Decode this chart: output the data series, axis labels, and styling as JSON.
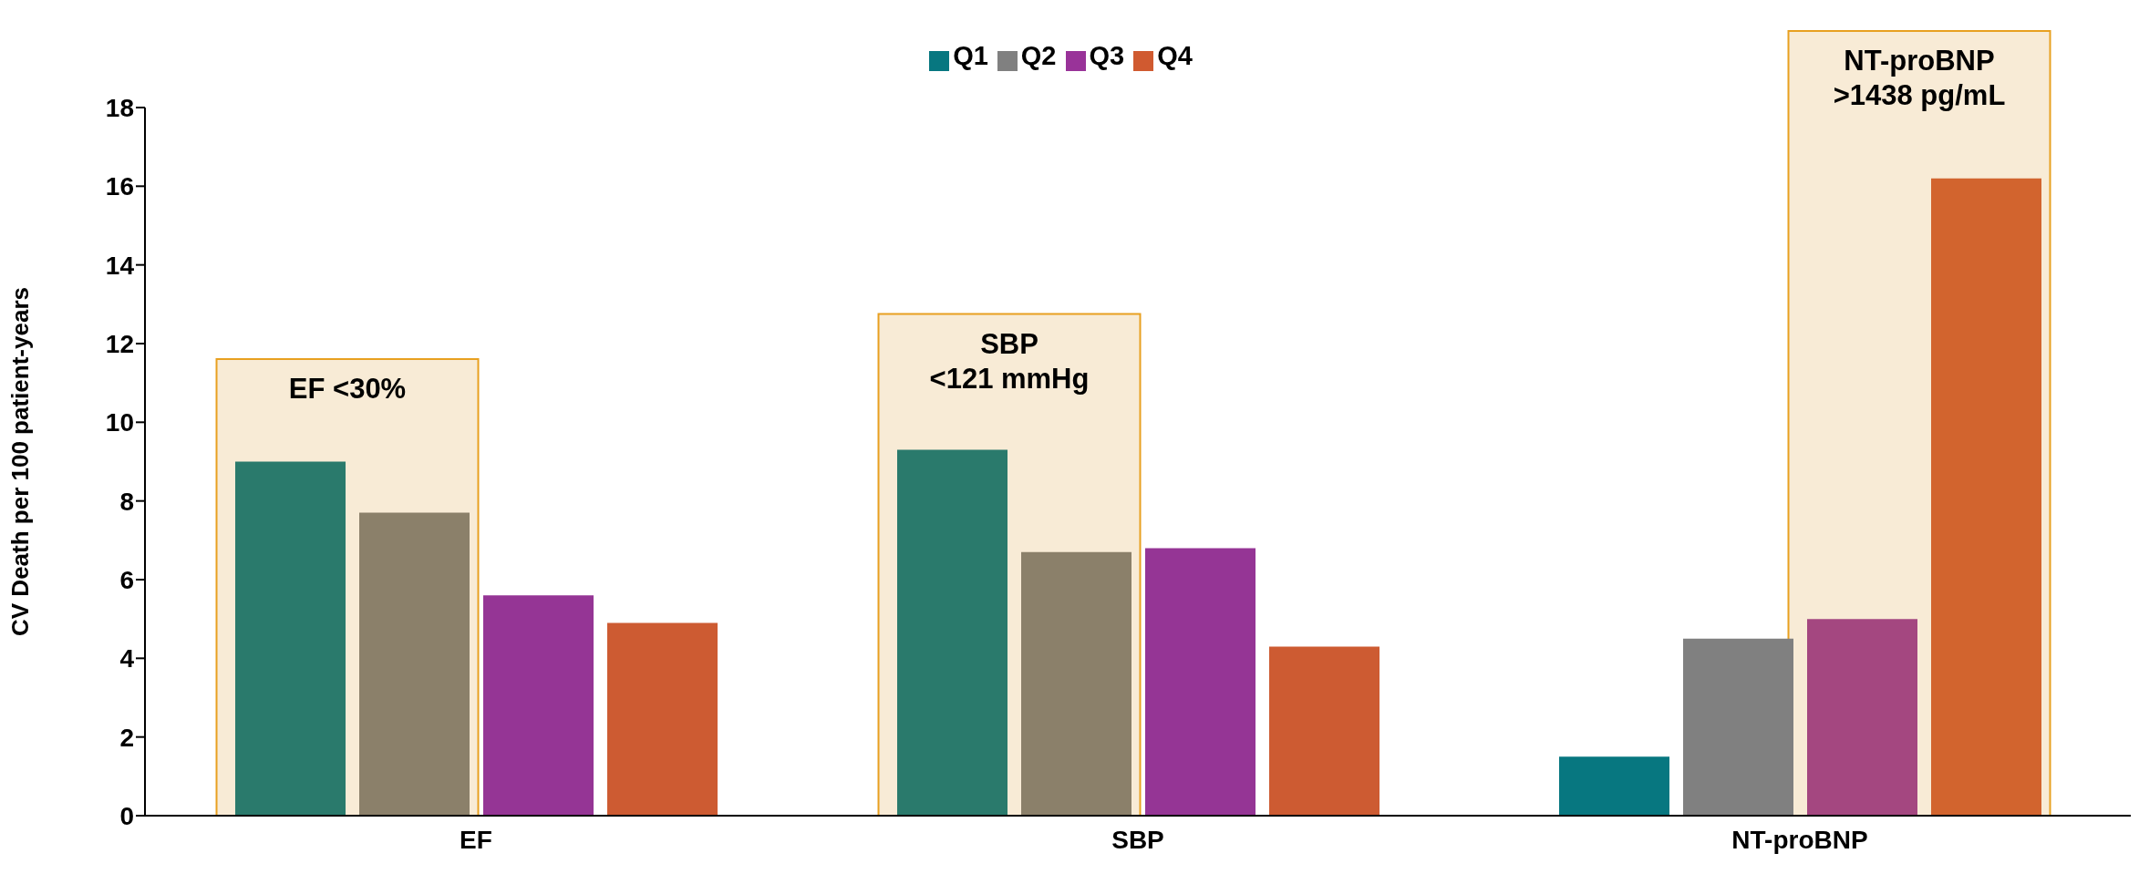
{
  "chart_data": {
    "type": "bar",
    "ylabel": "CV Death per 100 patient-years",
    "categories": [
      "EF",
      "SBP",
      "NT-proBNP"
    ],
    "series": [
      {
        "name": "Q1",
        "color": "#077780",
        "colors": [
          "#2a7a6c",
          "#2a7a6c",
          "#077780"
        ],
        "values": [
          9.0,
          9.3,
          1.5
        ]
      },
      {
        "name": "Q2",
        "color": "#808080",
        "colors": [
          "#8b806a",
          "#8b806a",
          "#808080"
        ],
        "values": [
          7.7,
          6.7,
          4.5
        ]
      },
      {
        "name": "Q3",
        "color": "#993399",
        "colors": [
          "#953595",
          "#953595",
          "#a44780"
        ],
        "values": [
          5.6,
          6.8,
          5.0
        ]
      },
      {
        "name": "Q4",
        "color": "#d05a30",
        "colors": [
          "#cd5b32",
          "#cd5b32",
          "#d2642e"
        ],
        "values": [
          4.9,
          4.3,
          16.2
        ]
      }
    ],
    "ylim": [
      0,
      18
    ],
    "yticks": [
      0,
      2,
      4,
      6,
      8,
      10,
      12,
      14,
      16,
      18
    ],
    "legend": "top",
    "grid": false,
    "bands": [
      {
        "axis": "x",
        "from": "EF",
        "to": "EF",
        "label": "EF <30%",
        "color": "#f8ebd6"
      },
      {
        "axis": "x",
        "from": "SBP",
        "to": "SBP",
        "label": "SBP\n<121 mmHg",
        "color": "#f8ebd6"
      },
      {
        "axis": "x",
        "from": "NT-proBNP",
        "to": "NT-proBNP",
        "label": "NT-proBNP\n>1438 pg/mL",
        "color": "#f8ebd6"
      }
    ]
  }
}
